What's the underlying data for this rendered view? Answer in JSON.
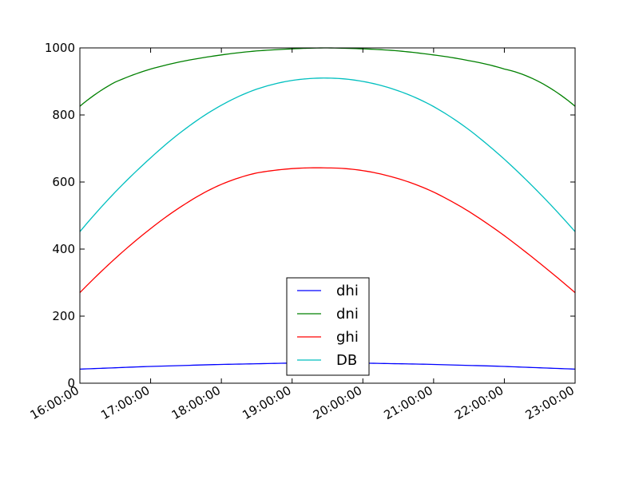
{
  "chart_data": {
    "type": "line",
    "title": "",
    "xlabel": "",
    "ylabel": "",
    "x_ticks": [
      "16:00:00",
      "17:00:00",
      "18:00:00",
      "19:00:00",
      "20:00:00",
      "21:00:00",
      "22:00:00",
      "23:00:00"
    ],
    "x": [
      "16:00:00",
      "16:30:00",
      "17:00:00",
      "17:30:00",
      "18:00:00",
      "18:30:00",
      "19:00:00",
      "19:30:00",
      "20:00:00",
      "20:30:00",
      "21:00:00",
      "21:30:00",
      "22:00:00",
      "22:30:00",
      "23:00:00"
    ],
    "xlim": [
      "16:00:00",
      "23:00:00"
    ],
    "ylim": [
      0,
      1000
    ],
    "y_ticks": [
      0,
      200,
      400,
      600,
      800,
      1000
    ],
    "grid": false,
    "legend_position": "lower center",
    "series": [
      {
        "name": "dhi",
        "color": "#0000ff",
        "values": [
          42,
          46,
          50,
          53,
          56,
          58,
          60,
          61,
          60,
          58,
          56,
          53,
          50,
          46,
          42
        ]
      },
      {
        "name": "dni",
        "color": "#008000",
        "values": [
          826,
          898,
          937,
          962,
          979,
          991,
          997,
          1000,
          997,
          991,
          979,
          962,
          937,
          898,
          826
        ]
      },
      {
        "name": "ghi",
        "color": "#ff0000",
        "values": [
          270,
          372,
          461,
          536,
          593,
          627,
          640,
          642,
          634,
          610,
          570,
          512,
          440,
          358,
          270
        ]
      },
      {
        "name": "DB",
        "color": "#00bfbf",
        "values": [
          452,
          570,
          672,
          760,
          829,
          877,
          903,
          910,
          900,
          872,
          825,
          756,
          668,
          566,
          452
        ]
      }
    ]
  }
}
